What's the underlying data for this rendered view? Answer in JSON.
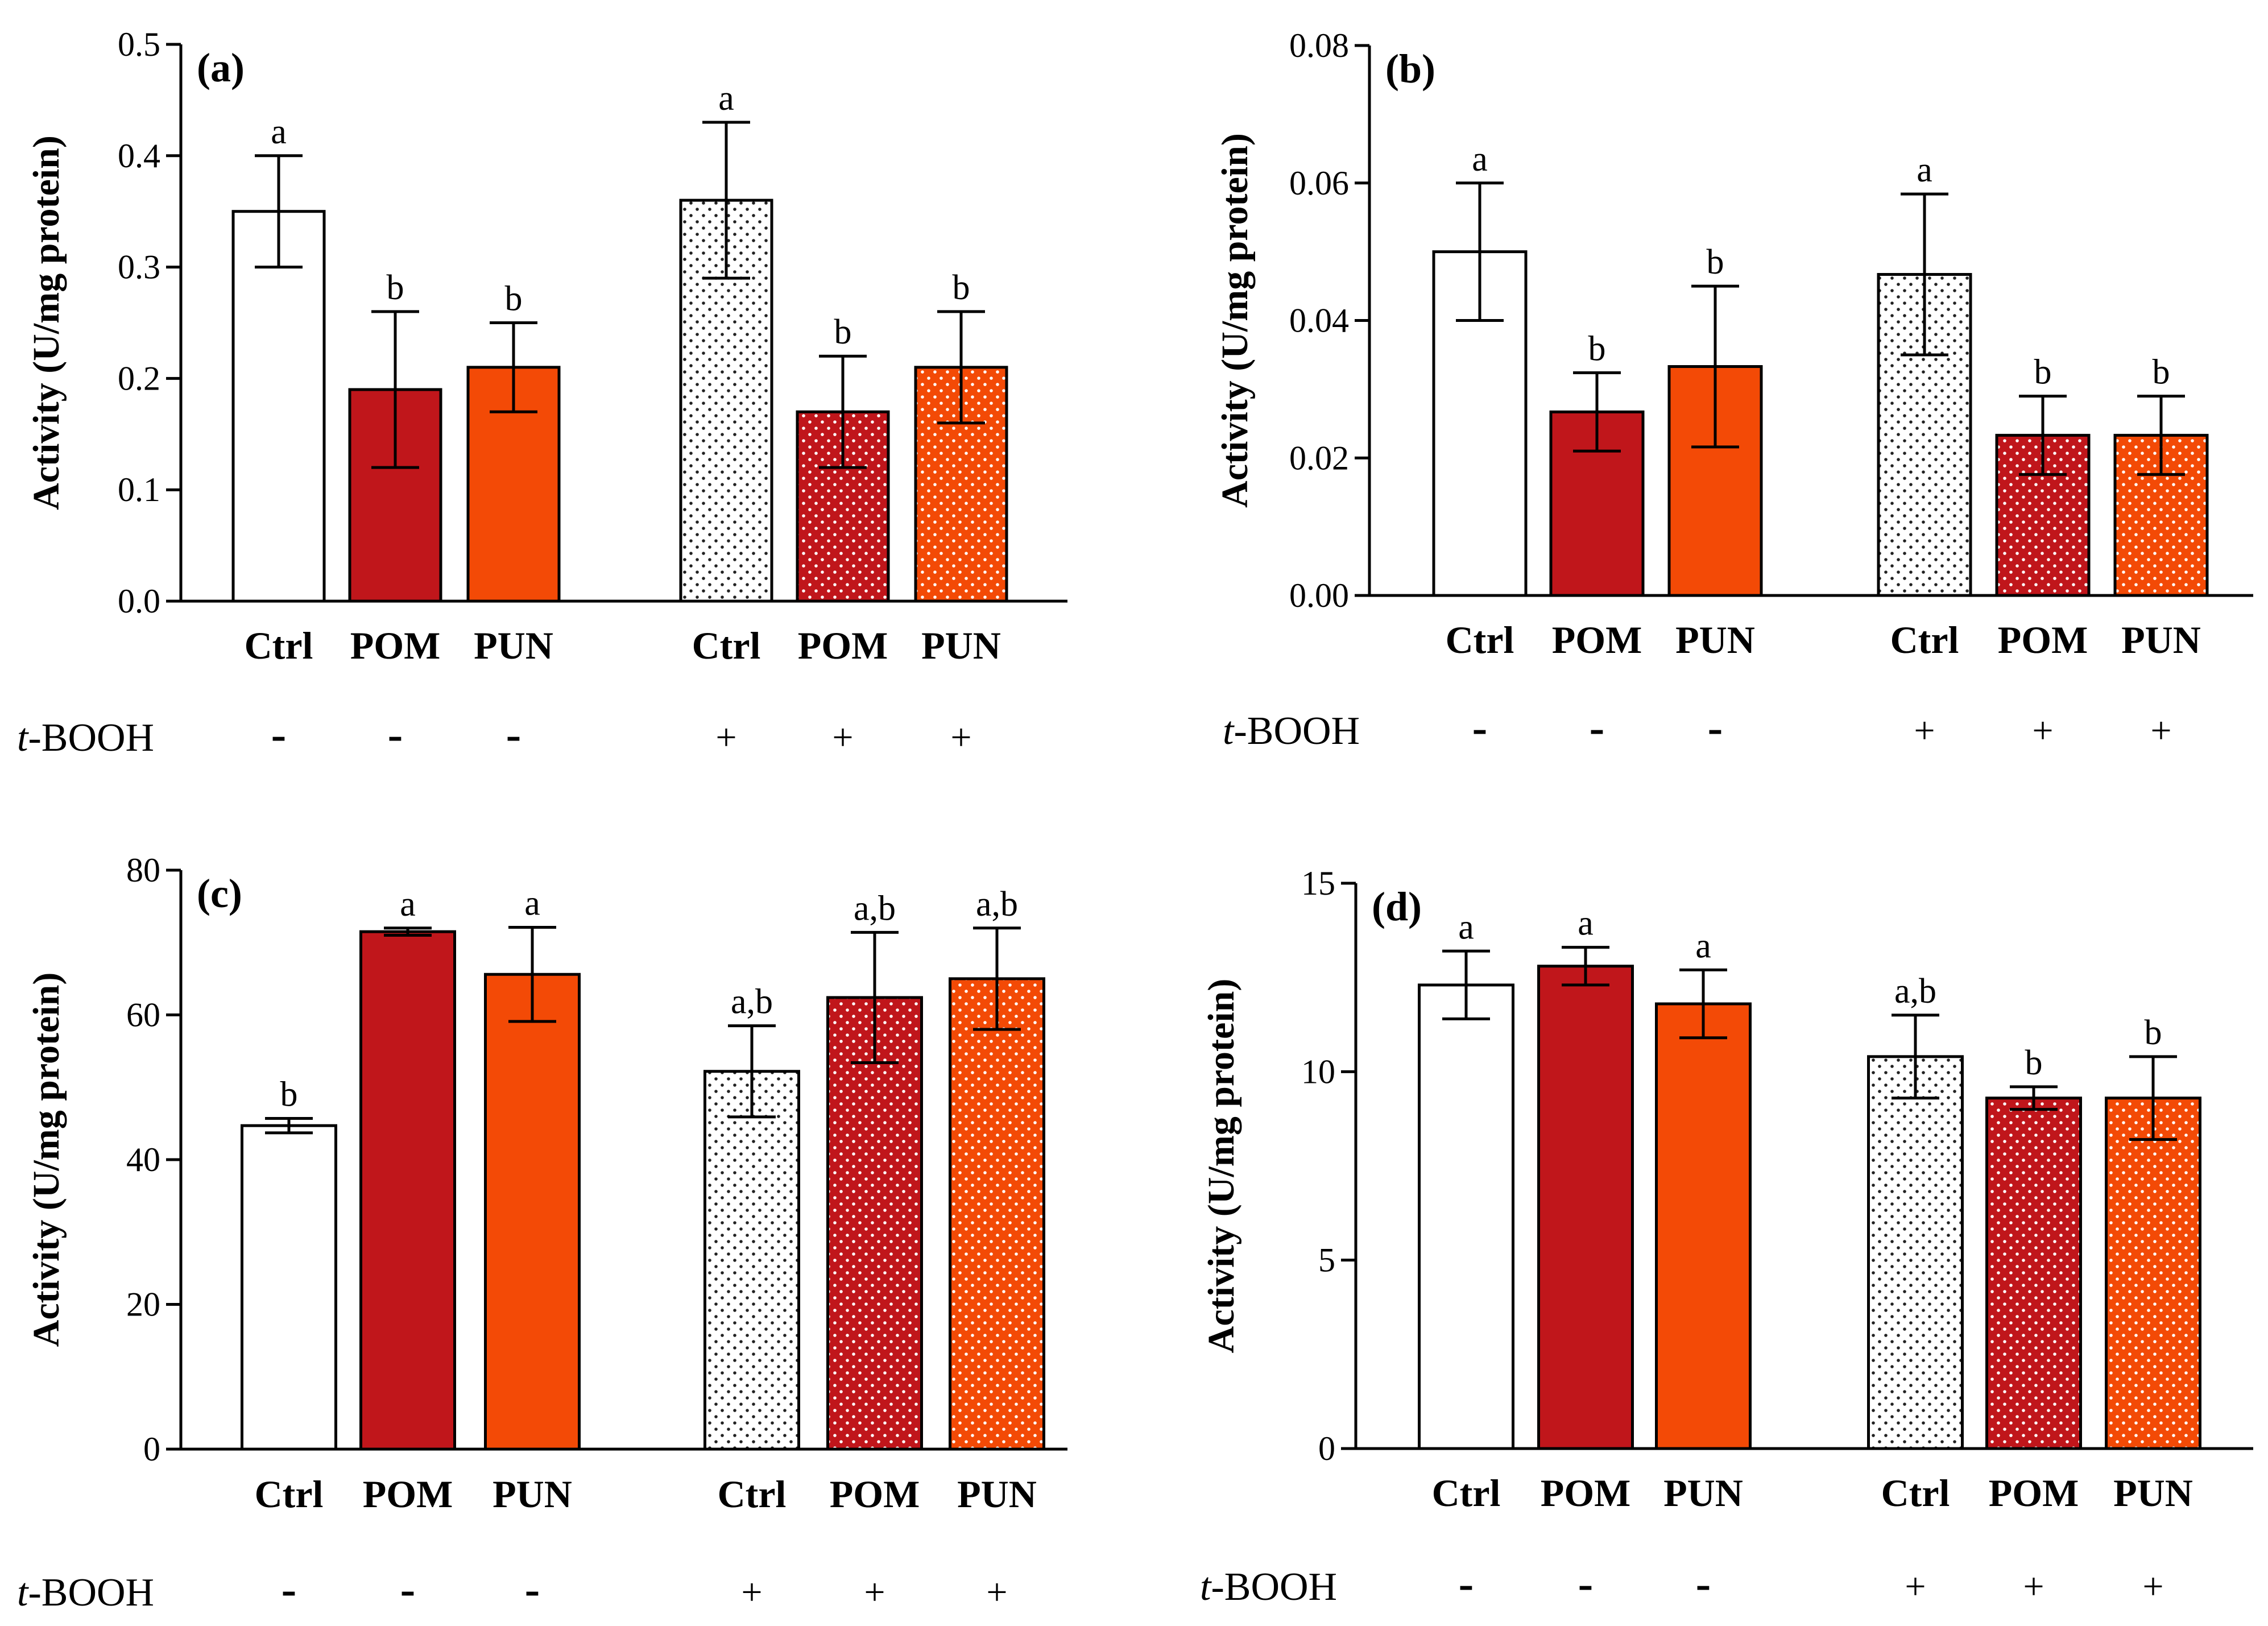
{
  "figure": {
    "treatment_label_italic": "t",
    "treatment_label_rest": "-BOOH"
  },
  "colors": {
    "ctrl": "#ffffff",
    "pom": "#c0161b",
    "pun": "#f34a06",
    "outline": "#000000"
  },
  "chart_data": [
    {
      "panel": "(a)",
      "type": "bar",
      "ylabel": "Activity (U/mg protein)",
      "ylim": [
        0,
        0.5
      ],
      "yticks": [
        "0.0",
        "0.1",
        "0.2",
        "0.3",
        "0.4",
        "0.5"
      ],
      "ytick_values": [
        0,
        0.1,
        0.2,
        0.3,
        0.4,
        0.5
      ],
      "categories": [
        "Ctrl",
        "POM",
        "PUN",
        "Ctrl",
        "POM",
        "PUN"
      ],
      "treatment_signs": [
        "-",
        "-",
        "-",
        "+",
        "+",
        "+"
      ],
      "values": [
        0.35,
        0.19,
        0.21,
        0.36,
        0.17,
        0.21
      ],
      "errors": [
        0.05,
        0.07,
        0.04,
        0.07,
        0.05,
        0.05
      ],
      "sig_letters": [
        "a",
        "b",
        "b",
        "a",
        "b",
        "b"
      ]
    },
    {
      "panel": "(b)",
      "type": "bar",
      "ylabel": "Activity (U/mg protein)",
      "ylim": [
        0,
        0.08
      ],
      "yticks": [
        "0.00",
        "0.02",
        "0.04",
        "0.06",
        "0.08"
      ],
      "ytick_values": [
        0,
        0.02,
        0.04,
        0.06,
        0.08
      ],
      "categories": [
        "Ctrl",
        "POM",
        "PUN",
        "Ctrl",
        "POM",
        "PUN"
      ],
      "treatment_signs": [
        "-",
        "-",
        "-",
        "+",
        "+",
        "+"
      ],
      "values": [
        0.05,
        0.0267,
        0.0333,
        0.0467,
        0.0233,
        0.0233
      ],
      "errors": [
        0.01,
        0.0057,
        0.0117,
        0.0117,
        0.0057,
        0.0057
      ],
      "sig_letters": [
        "a",
        "b",
        "b",
        "a",
        "b",
        "b"
      ]
    },
    {
      "panel": "(c)",
      "type": "bar",
      "ylabel": "Activity (U/mg protein)",
      "ylim": [
        0,
        80
      ],
      "yticks": [
        "0",
        "20",
        "40",
        "60",
        "80"
      ],
      "ytick_values": [
        0,
        20,
        40,
        60,
        80
      ],
      "categories": [
        "Ctrl",
        "POM",
        "PUN",
        "Ctrl",
        "POM",
        "PUN"
      ],
      "treatment_signs": [
        "-",
        "-",
        "-",
        "+",
        "+",
        "+"
      ],
      "values": [
        44.7,
        71.5,
        65.6,
        52.2,
        62.4,
        65.0
      ],
      "errors": [
        1.0,
        0.5,
        6.5,
        6.3,
        9.0,
        7.0
      ],
      "sig_letters": [
        "b",
        "a",
        "a",
        "a,b",
        "a,b",
        "a,b"
      ]
    },
    {
      "panel": "(d)",
      "type": "bar",
      "ylabel": "Activity (U/mg protein)",
      "ylim": [
        0,
        15
      ],
      "yticks": [
        "0",
        "5",
        "10",
        "15"
      ],
      "ytick_values": [
        0,
        5,
        10,
        15
      ],
      "categories": [
        "Ctrl",
        "POM",
        "PUN",
        "Ctrl",
        "POM",
        "PUN"
      ],
      "treatment_signs": [
        "-",
        "-",
        "-",
        "+",
        "+",
        "+"
      ],
      "values": [
        12.3,
        12.8,
        11.8,
        10.4,
        9.3,
        9.3
      ],
      "errors": [
        0.9,
        0.5,
        0.9,
        1.1,
        0.3,
        1.1
      ],
      "sig_letters": [
        "a",
        "a",
        "a",
        "a,b",
        "b",
        "b"
      ]
    }
  ]
}
